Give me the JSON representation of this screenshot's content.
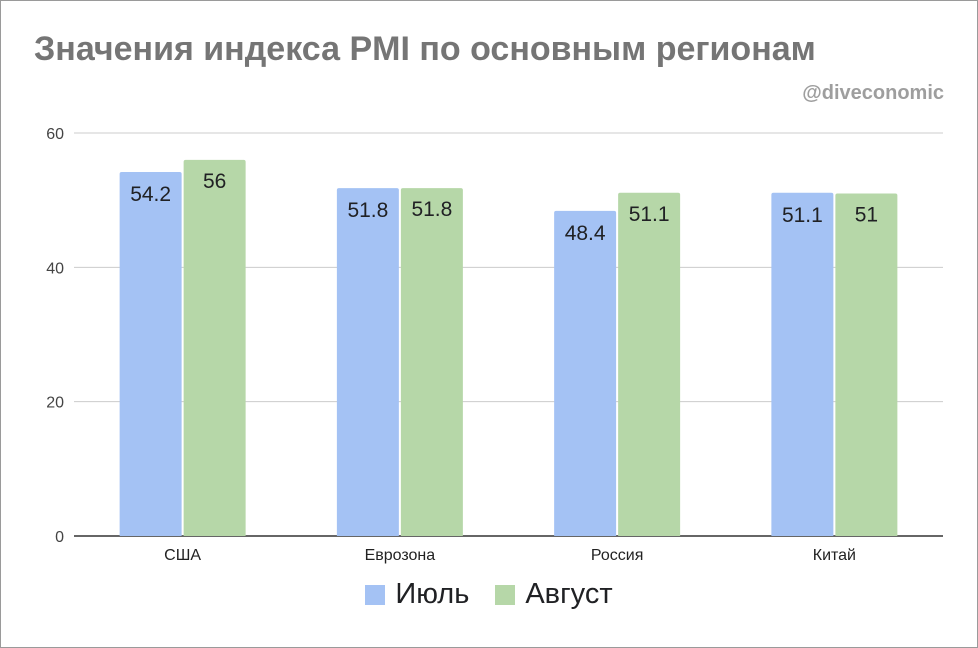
{
  "title": "Значения индекса PMI по основным регионам",
  "watermark": "@diveconomic",
  "chart_data": {
    "type": "bar",
    "title": "Значения индекса PMI по основным регионам",
    "categories": [
      "США",
      "Еврозона",
      "Россия",
      "Китай"
    ],
    "series": [
      {
        "name": "Июль",
        "values": [
          54.2,
          51.8,
          48.4,
          51.1
        ],
        "labels": [
          "54.2",
          "51.8",
          "48.4",
          "51.1"
        ],
        "color": "#a4c2f4"
      },
      {
        "name": "Август",
        "values": [
          56,
          51.8,
          51.1,
          51
        ],
        "labels": [
          "56",
          "51.8",
          "51.1",
          "51"
        ],
        "color": "#b6d7a8"
      }
    ],
    "yticks": [
      0,
      20,
      40,
      60
    ],
    "ylim": [
      0,
      60
    ],
    "xlabel": "",
    "ylabel": "",
    "grid": true,
    "legend": "bottom"
  }
}
